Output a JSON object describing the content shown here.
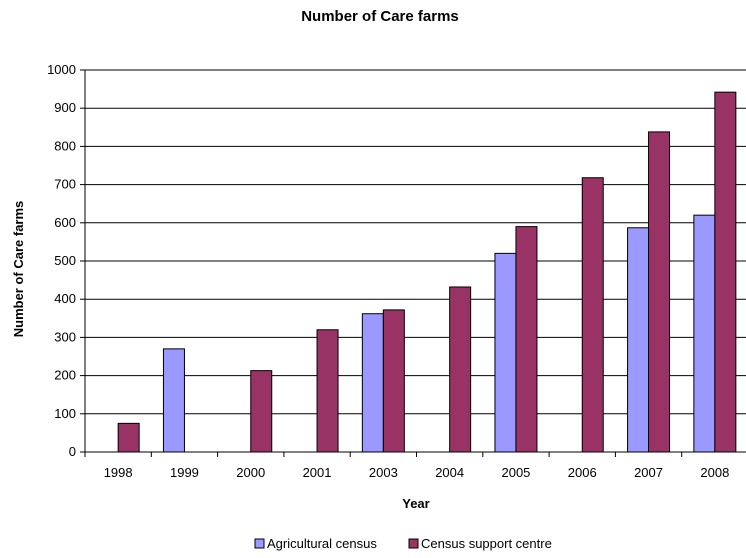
{
  "chart_data": {
    "type": "bar",
    "title": "Number of Care farms",
    "xlabel": "Year",
    "ylabel": "Number of Care farms",
    "categories": [
      "1998",
      "1999",
      "2000",
      "2001",
      "2003",
      "2004",
      "2005",
      "2006",
      "2007",
      "2008"
    ],
    "series": [
      {
        "name": "Agricultural census",
        "color": "#9999ff",
        "values": [
          null,
          270,
          null,
          null,
          362,
          null,
          520,
          null,
          587,
          620
        ]
      },
      {
        "name": "Census support centre",
        "color": "#993366",
        "values": [
          75,
          null,
          213,
          320,
          372,
          432,
          590,
          718,
          838,
          942
        ]
      }
    ],
    "ylim": [
      0,
      1000
    ],
    "yticks": [
      "0",
      "100",
      "200",
      "300",
      "400",
      "500",
      "600",
      "700",
      "800",
      "900",
      "1000"
    ],
    "grid": true,
    "legend": "bottom"
  }
}
